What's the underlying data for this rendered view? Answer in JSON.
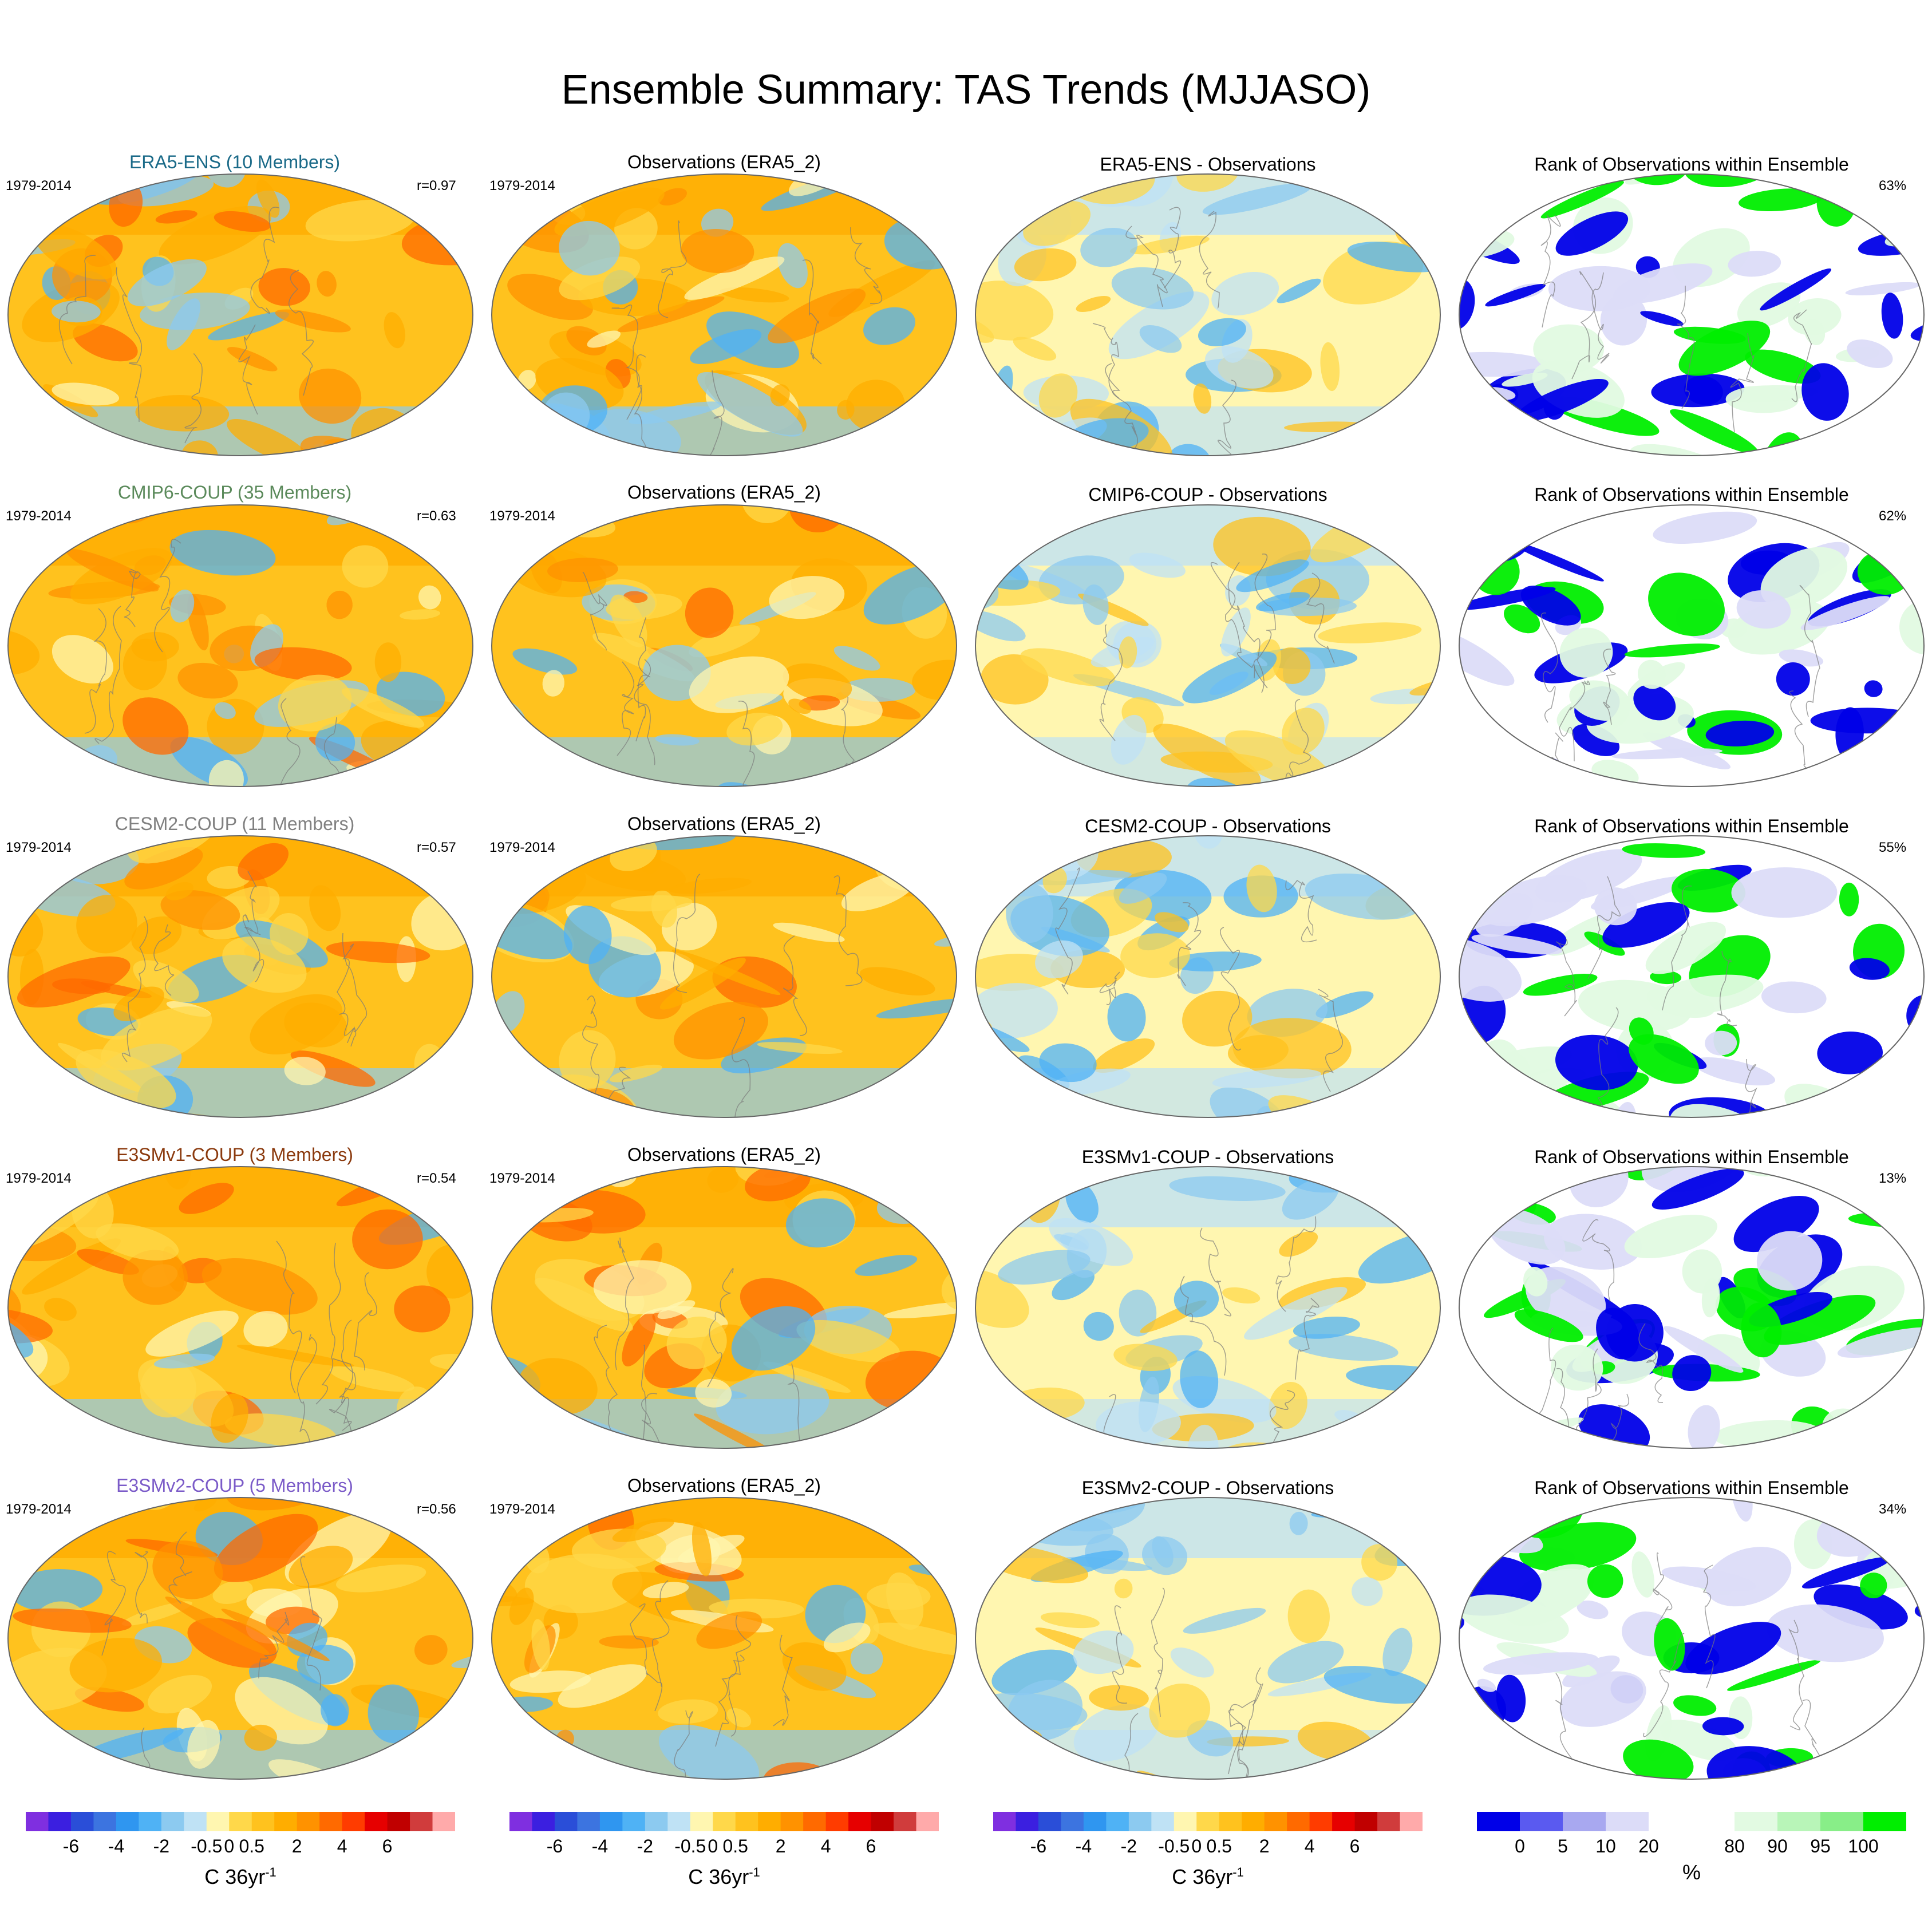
{
  "title": "Ensemble Summary: TAS Trends (MJJASO)",
  "rows": [
    {
      "model_title": "ERA5-ENS (10 Members)",
      "model_color": "#1a6a88",
      "period": "1979-2014",
      "r": "r=0.97",
      "obs_title": "Observations (ERA5_2)",
      "diff_title": "ERA5-ENS - Observations",
      "rank_title": "Rank of Observations within Ensemble",
      "rank_pct": "63%"
    },
    {
      "model_title": "CMIP6-COUP (35 Members)",
      "model_color": "#5b8a5b",
      "period": "1979-2014",
      "r": "r=0.63",
      "obs_title": "Observations (ERA5_2)",
      "diff_title": "CMIP6-COUP - Observations",
      "rank_title": "Rank of Observations within Ensemble",
      "rank_pct": "62%"
    },
    {
      "model_title": "CESM2-COUP (11 Members)",
      "model_color": "#808080",
      "period": "1979-2014",
      "r": "r=0.57",
      "obs_title": "Observations (ERA5_2)",
      "diff_title": "CESM2-COUP - Observations",
      "rank_title": "Rank of Observations within Ensemble",
      "rank_pct": "55%"
    },
    {
      "model_title": "E3SMv1-COUP (3 Members)",
      "model_color": "#8b3a0e",
      "period": "1979-2014",
      "r": "r=0.54",
      "obs_title": "Observations (ERA5_2)",
      "diff_title": "E3SMv1-COUP - Observations",
      "rank_title": "Rank of Observations within Ensemble",
      "rank_pct": "13%"
    },
    {
      "model_title": "E3SMv2-COUP (5 Members)",
      "model_color": "#7b5bc8",
      "period": "1979-2014",
      "r": "r=0.56",
      "obs_title": "Observations (ERA5_2)",
      "diff_title": "E3SMv2-COUP - Observations",
      "rank_title": "Rank of Observations within Ensemble",
      "rank_pct": "34%"
    }
  ],
  "trend_colorbar": {
    "colors": [
      "#7f2fe0",
      "#3b1fe0",
      "#2a4ed8",
      "#3c74e0",
      "#2f96f0",
      "#4fb2f5",
      "#8ccaf0",
      "#bfe2f5",
      "#fff6b0",
      "#ffd84a",
      "#ffc21e",
      "#ffad00",
      "#ff9200",
      "#ff6a00",
      "#ff3c00",
      "#e60000",
      "#c00000",
      "#d03c3c",
      "#ffaaaa"
    ],
    "labels": [
      "-6",
      "-4",
      "-2",
      "-0.5",
      "0",
      "0.5",
      "2",
      "4",
      "6"
    ],
    "units_main": "C 36yr",
    "units_sup": "-1"
  },
  "rank_colorbar": {
    "colors": [
      "#0000e8",
      "#5a5af0",
      "#a8a8f0",
      "#dcdcf8",
      "#ffffff",
      "#ffffff",
      "#e2fae2",
      "#b8f5b8",
      "#88ee88",
      "#00ee00"
    ],
    "labels": [
      "0",
      "5",
      "10",
      "20",
      "80",
      "90",
      "95",
      "100"
    ],
    "units": "%"
  },
  "map_palette": {
    "trend": [
      "#ffc21e",
      "#ffad00",
      "#ffd84a",
      "#fff6b0",
      "#8ccaf0",
      "#4fb2f5",
      "#ff9200",
      "#ff6a00"
    ],
    "diff": [
      "#fff6b0",
      "#bfe2f5",
      "#8ccaf0",
      "#ffd84a",
      "#4fb2f5",
      "#ffc21e"
    ],
    "rank": [
      "#ffffff",
      "#0000e8",
      "#00ee00",
      "#dcdcf8",
      "#e2fae2"
    ]
  }
}
